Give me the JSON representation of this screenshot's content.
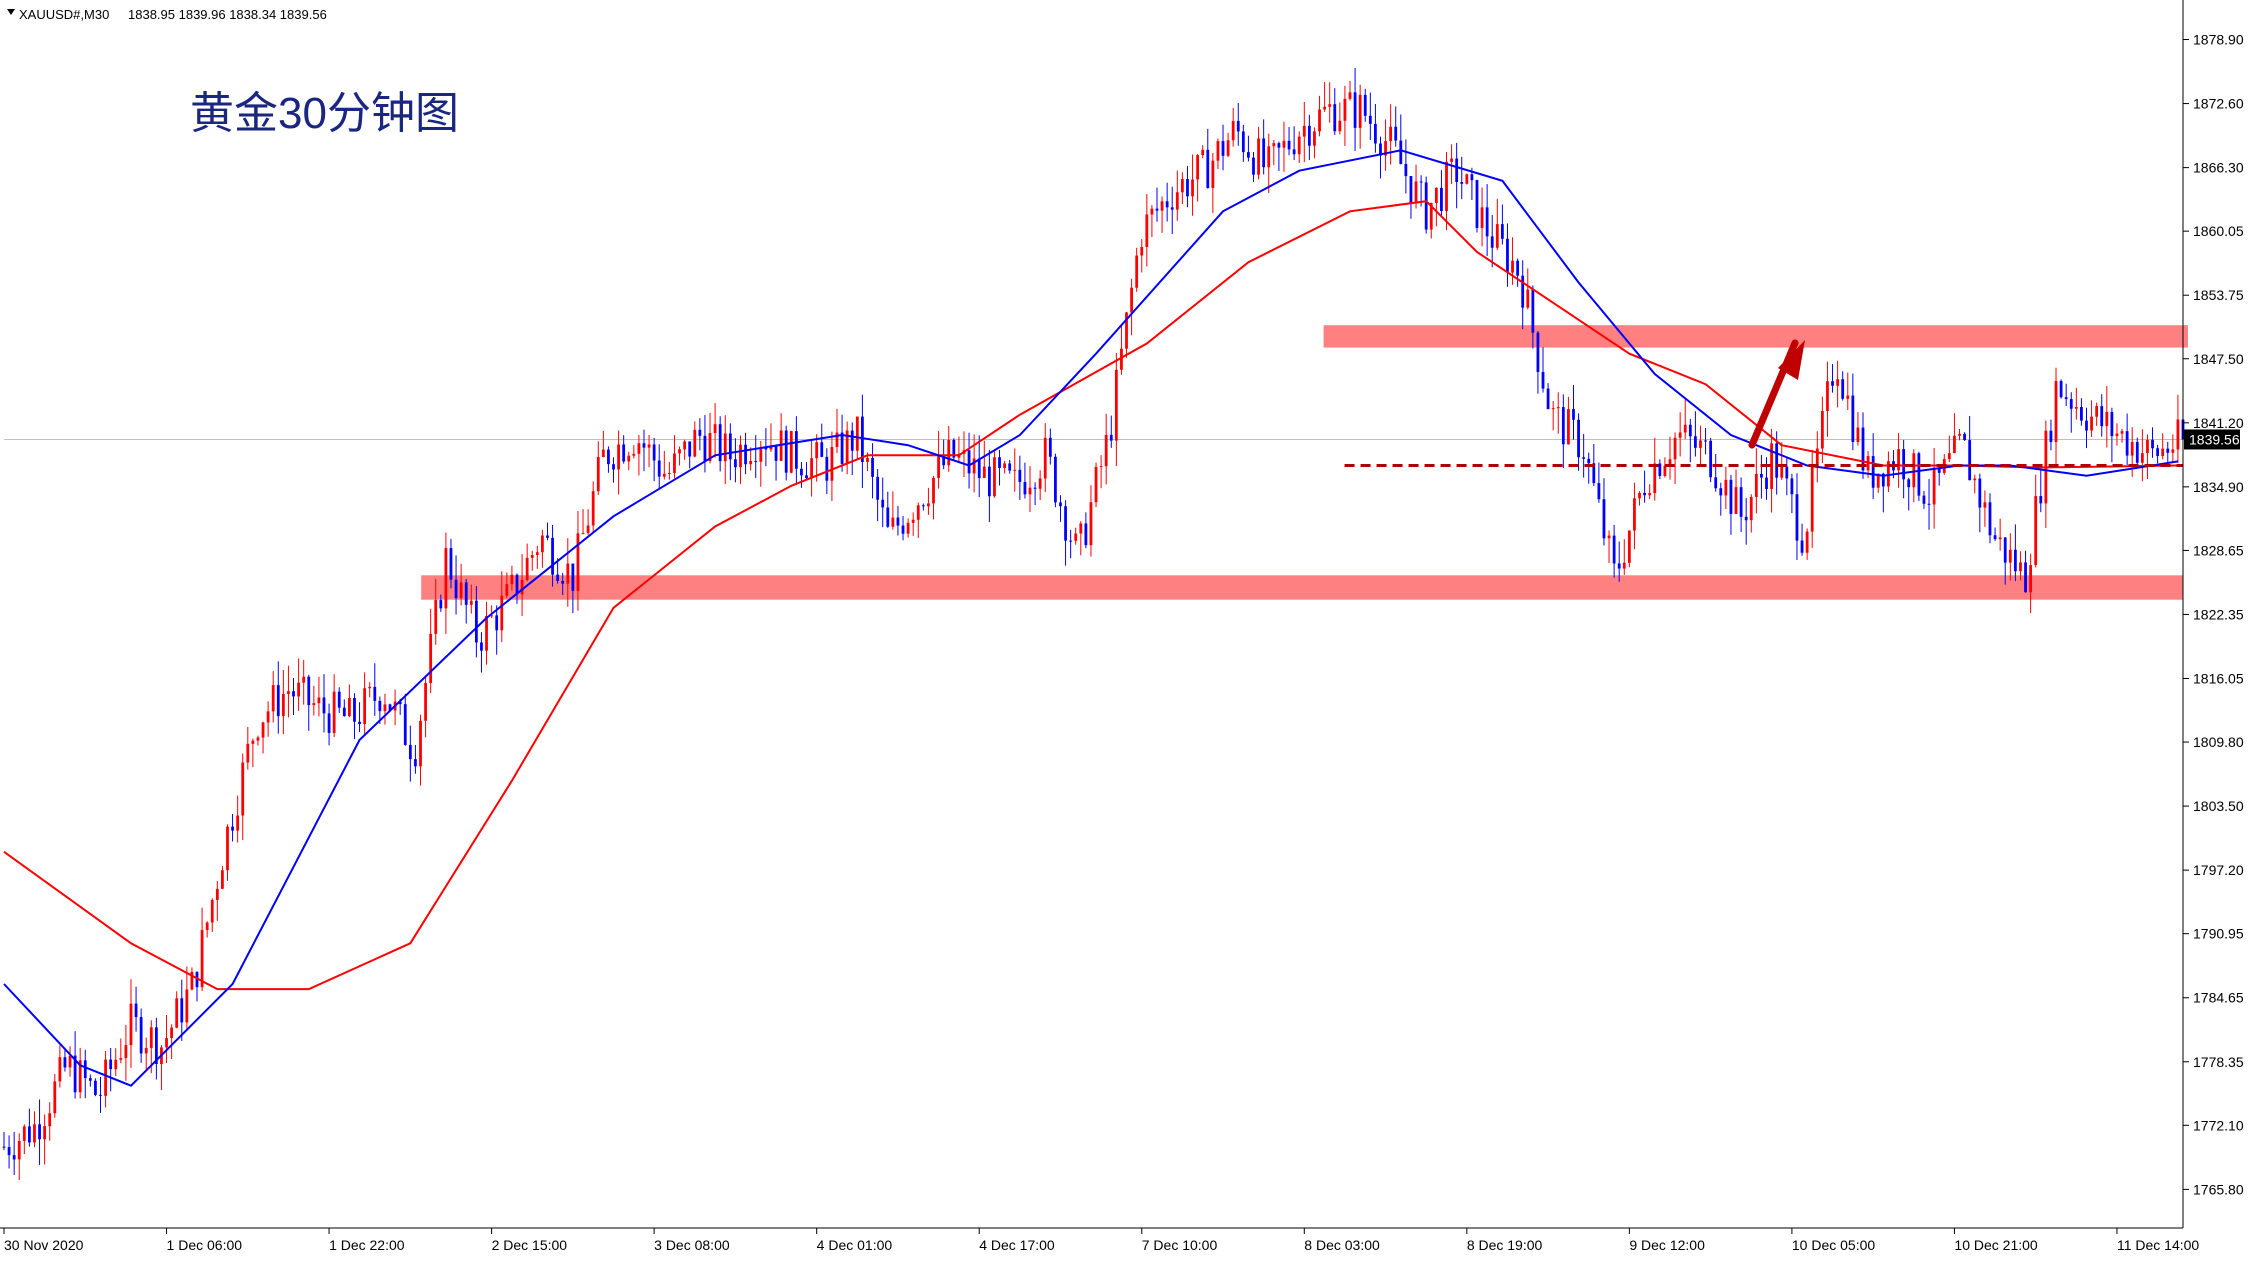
{
  "header": {
    "symbol": "XAUUSD#,M30",
    "ohlc": "1838.95 1839.96 1838.34 1839.56"
  },
  "annotation": {
    "title": "黄金30分钟图"
  },
  "colors": {
    "bull": "#ff0000",
    "bear": "#0000ff",
    "ma_fast": "#0000ff",
    "ma_slow": "#ff0000",
    "zone": "#ff8080",
    "dashed": "#b00000",
    "arrow": "#c00000",
    "current_price_line": "#c0c0c0",
    "axis": "#000000",
    "background": "#ffffff"
  },
  "chart_data": {
    "type": "candlestick",
    "symbol": "XAUUSD#",
    "timeframe": "M30",
    "current_price": 1839.56,
    "ylim": [
      1762.0,
      1882.0
    ],
    "y_ticks": [
      1878.9,
      1872.6,
      1866.3,
      1860.05,
      1853.75,
      1847.5,
      1841.2,
      1834.9,
      1828.65,
      1822.35,
      1816.05,
      1809.8,
      1803.5,
      1797.2,
      1790.95,
      1784.65,
      1778.35,
      1772.1,
      1765.8
    ],
    "x_labels": [
      "30 Nov 2020",
      "1 Dec 06:00",
      "1 Dec 22:00",
      "2 Dec 15:00",
      "3 Dec 08:00",
      "4 Dec 01:00",
      "4 Dec 17:00",
      "7 Dec 10:00",
      "8 Dec 03:00",
      "8 Dec 19:00",
      "9 Dec 12:00",
      "10 Dec 05:00",
      "10 Dec 21:00",
      "11 Dec 14:00"
    ],
    "label_bar_step": 32,
    "total_bars": 430,
    "closes": [
      1770,
      1772,
      1778,
      1775,
      1782,
      1780,
      1786,
      1800,
      1812,
      1815,
      1813,
      1812,
      1815,
      1809,
      1828,
      1820,
      1824,
      1830,
      1826,
      1838,
      1840,
      1836,
      1840,
      1838,
      1840,
      1838,
      1837,
      1840,
      1830,
      1834,
      1838,
      1836,
      1835,
      1838,
      1828,
      1840,
      1860,
      1864,
      1866,
      1870,
      1866,
      1870,
      1872,
      1872,
      1868,
      1862,
      1866,
      1860,
      1856,
      1842,
      1839,
      1826,
      1836,
      1840,
      1838,
      1832,
      1838,
      1830,
      1848,
      1836,
      1838,
      1834,
      1839,
      1830,
      1826,
      1845,
      1842,
      1840,
      1838,
      1839.56
    ],
    "upper_zone": [
      1848.6,
      1850.8
    ],
    "lower_zone": [
      1823.8,
      1826.2
    ],
    "dashed_level": 1837.0,
    "ma_fast": [
      [
        0,
        1786
      ],
      [
        15,
        1778
      ],
      [
        25,
        1776
      ],
      [
        45,
        1786
      ],
      [
        70,
        1810
      ],
      [
        95,
        1822
      ],
      [
        120,
        1832
      ],
      [
        140,
        1838
      ],
      [
        165,
        1840
      ],
      [
        178,
        1839
      ],
      [
        190,
        1837
      ],
      [
        200,
        1840
      ],
      [
        215,
        1848
      ],
      [
        240,
        1862
      ],
      [
        255,
        1866
      ],
      [
        275,
        1868
      ],
      [
        295,
        1865
      ],
      [
        310,
        1855
      ],
      [
        325,
        1846
      ],
      [
        340,
        1840
      ],
      [
        355,
        1837
      ],
      [
        370,
        1836
      ],
      [
        385,
        1837
      ],
      [
        395,
        1837
      ],
      [
        410,
        1836
      ],
      [
        428,
        1837.4
      ]
    ],
    "ma_slow": [
      [
        0,
        1799
      ],
      [
        25,
        1790
      ],
      [
        42,
        1785.5
      ],
      [
        60,
        1785.5
      ],
      [
        80,
        1790
      ],
      [
        100,
        1806
      ],
      [
        120,
        1823
      ],
      [
        140,
        1831
      ],
      [
        155,
        1835
      ],
      [
        170,
        1838
      ],
      [
        188,
        1838
      ],
      [
        200,
        1842
      ],
      [
        225,
        1849
      ],
      [
        245,
        1857
      ],
      [
        265,
        1862
      ],
      [
        280,
        1863
      ],
      [
        290,
        1858
      ],
      [
        305,
        1853
      ],
      [
        320,
        1848
      ],
      [
        335,
        1845
      ],
      [
        350,
        1839
      ],
      [
        370,
        1837
      ],
      [
        385,
        1837
      ],
      [
        400,
        1836.8
      ],
      [
        415,
        1836.9
      ],
      [
        428,
        1837.0
      ]
    ]
  }
}
